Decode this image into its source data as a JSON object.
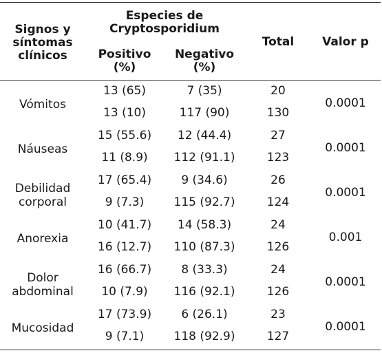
{
  "header": {
    "col1_line1": "Signos y",
    "col1_line2": "síntomas",
    "col1_line3": "clínicos",
    "species_line1": "Especies de",
    "species_line2": "Cryptosporidium",
    "positivo_line1": "Positivo",
    "positivo_line2": "(%)",
    "negativo_line1": "Negativo",
    "negativo_line2": "(%)",
    "total": "Total",
    "valor_p": "Valor p"
  },
  "rows": [
    {
      "label_line1": "Vómitos",
      "label_line2": "",
      "r1": {
        "pos": "13 (65)",
        "neg": "7 (35)",
        "total": "20"
      },
      "r2": {
        "pos": "13 (10)",
        "neg": "117 (90)",
        "total": "130"
      },
      "p": "0.0001"
    },
    {
      "label_line1": "Náuseas",
      "label_line2": "",
      "r1": {
        "pos": "15 (55.6)",
        "neg": "12 (44.4)",
        "total": "27"
      },
      "r2": {
        "pos": "11 (8.9)",
        "neg": "112 (91.1)",
        "total": "123"
      },
      "p": "0.0001"
    },
    {
      "label_line1": "Debilidad",
      "label_line2": "corporal",
      "r1": {
        "pos": "17 (65.4)",
        "neg": "9 (34.6)",
        "total": "26"
      },
      "r2": {
        "pos": "9 (7.3)",
        "neg": "115 (92.7)",
        "total": "124"
      },
      "p": "0.0001"
    },
    {
      "label_line1": "Anorexia",
      "label_line2": "",
      "r1": {
        "pos": "10 (41.7)",
        "neg": "14 (58.3)",
        "total": "24"
      },
      "r2": {
        "pos": "16 (12.7)",
        "neg": "110 (87.3)",
        "total": "126"
      },
      "p": "0.001"
    },
    {
      "label_line1": "Dolor",
      "label_line2": "abdominal",
      "r1": {
        "pos": "16 (66.7)",
        "neg": "8 (33.3)",
        "total": "24"
      },
      "r2": {
        "pos": "10 (7.9)",
        "neg": "116 (92.1)",
        "total": "126"
      },
      "p": "0.0001"
    },
    {
      "label_line1": "Mucosidad",
      "label_line2": "",
      "r1": {
        "pos": "17 (73.9)",
        "neg": "6 (26.1)",
        "total": "23"
      },
      "r2": {
        "pos": "9 (7.1)",
        "neg": "118 (92.9)",
        "total": "127"
      },
      "p": "0.0001"
    }
  ]
}
